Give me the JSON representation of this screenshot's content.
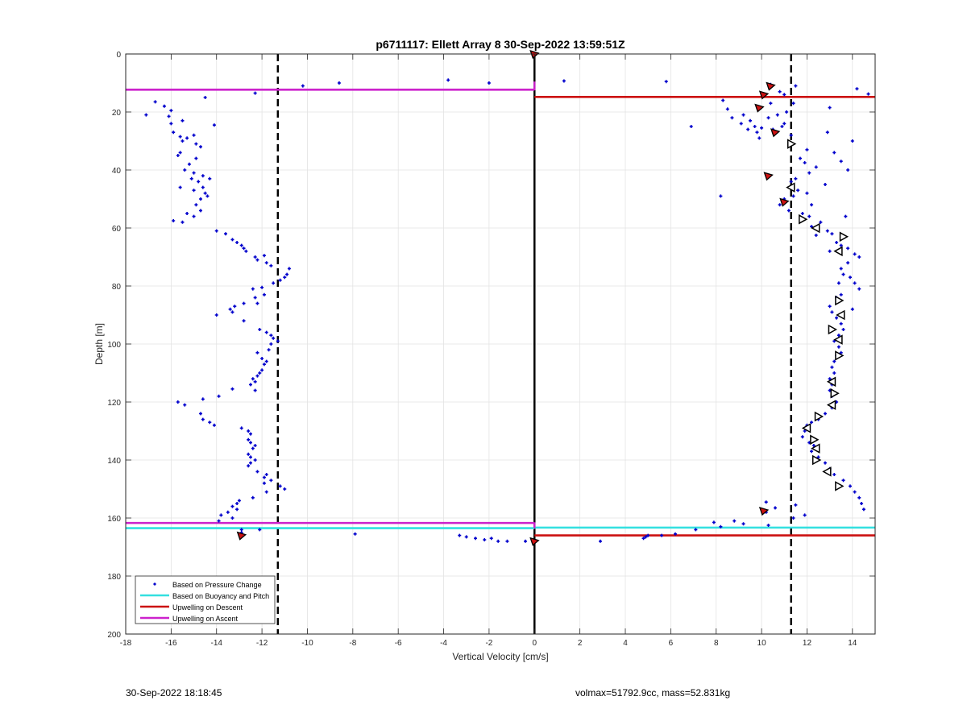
{
  "chart_data": {
    "type": "scatter",
    "title": "p6711117: Ellett Array 8 30-Sep-2022 13:59:51Z",
    "xlabel": "Vertical Velocity [cm/s]",
    "ylabel": "Depth [m]",
    "xlim": [
      -18,
      15
    ],
    "ylim": [
      0,
      200
    ],
    "y_reversed": true,
    "grid": true,
    "x_ticks": [
      -18,
      -16,
      -14,
      -12,
      -10,
      -8,
      -6,
      -4,
      -2,
      0,
      2,
      4,
      6,
      8,
      10,
      12,
      14
    ],
    "y_ticks": [
      0,
      20,
      40,
      60,
      80,
      100,
      120,
      140,
      160,
      180,
      200
    ],
    "legend": {
      "placement": "bottom-left",
      "entries": [
        {
          "label": "Based on Pressure Change",
          "color": "#0000cc",
          "style": "dot"
        },
        {
          "label": "Based on Buoyancy and Pitch",
          "color": "#33e0e0",
          "style": "line"
        },
        {
          "label": "Upwelling on Descent",
          "color": "#cc1111",
          "style": "line"
        },
        {
          "label": "Upwelling on Ascent",
          "color": "#cc22cc",
          "style": "line"
        }
      ]
    },
    "colors": {
      "pressure": "#0000cc",
      "buoyancy": "#33e0e0",
      "descent": "#cc1111",
      "ascent": "#cc22cc",
      "threshold": "#000000",
      "zero": "#000000"
    },
    "threshold_lines": [
      -11.3,
      11.3
    ],
    "zero_line": 0,
    "pressure_change_points": [
      [
        -17.1,
        21
      ],
      [
        -16.7,
        16.5
      ],
      [
        -16.3,
        18
      ],
      [
        -16.0,
        19.5
      ],
      [
        -16.1,
        21.5
      ],
      [
        -16.0,
        24
      ],
      [
        -15.9,
        27
      ],
      [
        -15.6,
        28.5
      ],
      [
        -15.5,
        23
      ],
      [
        -15.5,
        30
      ],
      [
        -15.3,
        29
      ],
      [
        -15.0,
        28
      ],
      [
        -14.9,
        31
      ],
      [
        -14.7,
        32
      ],
      [
        -15.6,
        34
      ],
      [
        -15.7,
        35
      ],
      [
        -15.2,
        38
      ],
      [
        -14.9,
        36
      ],
      [
        -15.4,
        40
      ],
      [
        -15.0,
        41
      ],
      [
        -15.1,
        43
      ],
      [
        -14.6,
        42
      ],
      [
        -14.3,
        43
      ],
      [
        -14.8,
        44
      ],
      [
        -15.6,
        46
      ],
      [
        -15.0,
        47
      ],
      [
        -14.6,
        46
      ],
      [
        -14.4,
        49
      ],
      [
        -14.5,
        48
      ],
      [
        -14.7,
        50
      ],
      [
        -14.9,
        52
      ],
      [
        -14.7,
        54
      ],
      [
        -15.3,
        55
      ],
      [
        -15.0,
        56
      ],
      [
        -15.5,
        58
      ],
      [
        -15.9,
        57.5
      ],
      [
        -14.5,
        15
      ],
      [
        -14.1,
        24.5
      ],
      [
        -14.0,
        61
      ],
      [
        -13.6,
        62
      ],
      [
        -13.3,
        64
      ],
      [
        -13.1,
        65
      ],
      [
        -12.9,
        66
      ],
      [
        -12.8,
        67
      ],
      [
        -12.7,
        68
      ],
      [
        -12.3,
        70
      ],
      [
        -12.2,
        71
      ],
      [
        -11.9,
        69.5
      ],
      [
        -11.8,
        72
      ],
      [
        -11.6,
        73
      ],
      [
        -10.8,
        74
      ],
      [
        -10.9,
        76
      ],
      [
        -11.2,
        78
      ],
      [
        -11.0,
        77
      ],
      [
        -11.5,
        79
      ],
      [
        -12.0,
        80.5
      ],
      [
        -12.4,
        81
      ],
      [
        -12.3,
        84
      ],
      [
        -11.9,
        83
      ],
      [
        -12.2,
        86
      ],
      [
        -12.8,
        86
      ],
      [
        -13.2,
        87
      ],
      [
        -13.4,
        88
      ],
      [
        -14.0,
        90
      ],
      [
        -13.3,
        89
      ],
      [
        -12.8,
        92
      ],
      [
        -12.1,
        95
      ],
      [
        -11.8,
        96
      ],
      [
        -11.6,
        97
      ],
      [
        -11.5,
        98
      ],
      [
        -11.3,
        99
      ],
      [
        -11.6,
        100
      ],
      [
        -11.7,
        102
      ],
      [
        -12.2,
        103
      ],
      [
        -12.0,
        105
      ],
      [
        -11.8,
        106
      ],
      [
        -11.9,
        107
      ],
      [
        -12.0,
        109
      ],
      [
        -12.1,
        110
      ],
      [
        -12.2,
        111
      ],
      [
        -12.4,
        112
      ],
      [
        -12.3,
        113
      ],
      [
        -12.5,
        114
      ],
      [
        -12.3,
        116
      ],
      [
        -13.3,
        115.5
      ],
      [
        -13.9,
        118
      ],
      [
        -14.6,
        119
      ],
      [
        -15.4,
        121
      ],
      [
        -15.7,
        120
      ],
      [
        -14.7,
        124
      ],
      [
        -14.6,
        126
      ],
      [
        -14.3,
        127
      ],
      [
        -14.1,
        128
      ],
      [
        -12.9,
        129
      ],
      [
        -12.6,
        130
      ],
      [
        -12.5,
        131
      ],
      [
        -12.6,
        133
      ],
      [
        -12.5,
        134
      ],
      [
        -12.3,
        135
      ],
      [
        -12.4,
        136
      ],
      [
        -12.6,
        138
      ],
      [
        -12.5,
        139
      ],
      [
        -12.3,
        140
      ],
      [
        -12.5,
        141
      ],
      [
        -12.6,
        142
      ],
      [
        -12.2,
        144
      ],
      [
        -11.8,
        145
      ],
      [
        -11.9,
        146
      ],
      [
        -11.6,
        147
      ],
      [
        -11.9,
        148
      ],
      [
        -11.2,
        149
      ],
      [
        -11.0,
        150
      ],
      [
        -11.8,
        151
      ],
      [
        -12.4,
        153
      ],
      [
        -13.0,
        154
      ],
      [
        -13.1,
        155
      ],
      [
        -13.3,
        156
      ],
      [
        -13.1,
        157
      ],
      [
        -13.5,
        158
      ],
      [
        -13.8,
        159
      ],
      [
        -13.3,
        160
      ],
      [
        -13.9,
        161
      ],
      [
        -12.9,
        164
      ],
      [
        -12.9,
        165
      ],
      [
        -12.1,
        164
      ],
      [
        -7.9,
        165.5
      ],
      [
        -12.3,
        13.5
      ],
      [
        -10.2,
        11
      ],
      [
        -8.6,
        10
      ],
      [
        -3.8,
        9
      ],
      [
        -2.0,
        10
      ],
      [
        1.3,
        9.3
      ],
      [
        5.8,
        9.5
      ],
      [
        -3.3,
        166
      ],
      [
        -3.0,
        166.5
      ],
      [
        -2.6,
        167
      ],
      [
        -2.2,
        167.5
      ],
      [
        -1.9,
        167
      ],
      [
        -1.6,
        168
      ],
      [
        -1.2,
        168
      ],
      [
        -0.4,
        168
      ],
      [
        2.9,
        168
      ],
      [
        4.8,
        167
      ],
      [
        4.9,
        166.5
      ],
      [
        5.0,
        166
      ],
      [
        5.6,
        166
      ],
      [
        6.2,
        165.5
      ],
      [
        7.1,
        164
      ],
      [
        8.2,
        163
      ],
      [
        7.9,
        161.5
      ],
      [
        8.8,
        161
      ],
      [
        9.2,
        162
      ],
      [
        10.3,
        162.5
      ],
      [
        10.2,
        154.5
      ],
      [
        10.6,
        156.5
      ],
      [
        11.5,
        155.5
      ],
      [
        11.9,
        159
      ],
      [
        11.4,
        160
      ],
      [
        10.2,
        158
      ],
      [
        8.2,
        49
      ],
      [
        6.9,
        25
      ],
      [
        8.3,
        16
      ],
      [
        8.5,
        19
      ],
      [
        8.7,
        22
      ],
      [
        9.2,
        21
      ],
      [
        9.1,
        24
      ],
      [
        9.5,
        23
      ],
      [
        9.7,
        25
      ],
      [
        9.8,
        27
      ],
      [
        9.4,
        26
      ],
      [
        9.9,
        29
      ],
      [
        10.0,
        25.5
      ],
      [
        10.4,
        17
      ],
      [
        10.3,
        22
      ],
      [
        10.7,
        21
      ],
      [
        10.5,
        26
      ],
      [
        10.9,
        25
      ],
      [
        11.0,
        24
      ],
      [
        11.3,
        28
      ],
      [
        11.1,
        20
      ],
      [
        11.0,
        14
      ],
      [
        11.5,
        11
      ],
      [
        10.4,
        10.5
      ],
      [
        10.8,
        13
      ],
      [
        14.2,
        12
      ],
      [
        14.7,
        13.8
      ],
      [
        13.0,
        18.5
      ],
      [
        12.9,
        27
      ],
      [
        11.4,
        17
      ],
      [
        12.0,
        33
      ],
      [
        11.7,
        36
      ],
      [
        11.9,
        37.5
      ],
      [
        12.4,
        39
      ],
      [
        12.1,
        41
      ],
      [
        11.5,
        43
      ],
      [
        11.3,
        44
      ],
      [
        11.6,
        47
      ],
      [
        12.0,
        48
      ],
      [
        11.4,
        49
      ],
      [
        11.0,
        50
      ],
      [
        10.8,
        52
      ],
      [
        11.2,
        54
      ],
      [
        11.8,
        55
      ],
      [
        12.1,
        56
      ],
      [
        12.6,
        58
      ],
      [
        12.2,
        59.5
      ],
      [
        12.9,
        61
      ],
      [
        13.1,
        62
      ],
      [
        12.4,
        62.5
      ],
      [
        13.3,
        65
      ],
      [
        13.5,
        66
      ],
      [
        13.8,
        67
      ],
      [
        14.1,
        69
      ],
      [
        14.3,
        70
      ],
      [
        13.8,
        72
      ],
      [
        13.5,
        74
      ],
      [
        13.6,
        76
      ],
      [
        13.9,
        77
      ],
      [
        14.1,
        79
      ],
      [
        14.3,
        81
      ],
      [
        13.5,
        83
      ],
      [
        13.3,
        84
      ],
      [
        13.0,
        87
      ],
      [
        13.1,
        89
      ],
      [
        13.3,
        91
      ],
      [
        13.5,
        93
      ],
      [
        13.6,
        95
      ],
      [
        13.4,
        97
      ],
      [
        13.2,
        99
      ],
      [
        13.4,
        101
      ],
      [
        13.5,
        103
      ],
      [
        13.3,
        104
      ],
      [
        13.2,
        106
      ],
      [
        13.1,
        108
      ],
      [
        13.2,
        110
      ],
      [
        13.0,
        112
      ],
      [
        13.1,
        114
      ],
      [
        13.0,
        116
      ],
      [
        13.1,
        118
      ],
      [
        13.3,
        120
      ],
      [
        13.1,
        122
      ],
      [
        12.8,
        124
      ],
      [
        12.5,
        126
      ],
      [
        12.2,
        127
      ],
      [
        12.0,
        128
      ],
      [
        11.9,
        130
      ],
      [
        11.8,
        132
      ],
      [
        12.1,
        134
      ],
      [
        12.3,
        135
      ],
      [
        12.2,
        137
      ],
      [
        12.5,
        139
      ],
      [
        12.8,
        141
      ],
      [
        13.0,
        143
      ],
      [
        13.2,
        145
      ],
      [
        13.6,
        147
      ],
      [
        13.9,
        149
      ],
      [
        14.1,
        151
      ],
      [
        14.3,
        153
      ],
      [
        14.4,
        155
      ],
      [
        14.5,
        157
      ],
      [
        14.0,
        30
      ],
      [
        13.2,
        34
      ],
      [
        13.5,
        37
      ],
      [
        13.8,
        40
      ],
      [
        12.8,
        45
      ],
      [
        12.2,
        52
      ],
      [
        13.7,
        56
      ],
      [
        13.0,
        68
      ],
      [
        13.4,
        79
      ],
      [
        14.0,
        88
      ]
    ],
    "descent_markers": [
      [
        10.4,
        11
      ],
      [
        10.1,
        14
      ],
      [
        9.9,
        18.5
      ],
      [
        10.6,
        27
      ],
      [
        10.3,
        42
      ],
      [
        11.0,
        51
      ],
      [
        10.1,
        157.5
      ],
      [
        -12.9,
        166
      ],
      [
        0,
        0
      ],
      [
        0,
        168
      ]
    ],
    "ascent_markers": [
      [
        11.3,
        31
      ],
      [
        11.3,
        46
      ],
      [
        11.8,
        57
      ],
      [
        12.4,
        60
      ],
      [
        13.6,
        63
      ],
      [
        13.4,
        68
      ],
      [
        13.4,
        85
      ],
      [
        13.5,
        90
      ],
      [
        13.1,
        95
      ],
      [
        13.4,
        98.5
      ],
      [
        13.4,
        104
      ],
      [
        13.1,
        113
      ],
      [
        13.2,
        117
      ],
      [
        13.1,
        121
      ],
      [
        12.5,
        125
      ],
      [
        12.0,
        129
      ],
      [
        12.3,
        133
      ],
      [
        12.4,
        136
      ],
      [
        12.4,
        140
      ],
      [
        12.9,
        144
      ],
      [
        13.4,
        149
      ]
    ],
    "lines": {
      "ascent_top": {
        "y": 12.3,
        "x_from": -18,
        "x_to": 0
      },
      "descent_top": {
        "y": 14.8,
        "x_from": 0,
        "x_to": 15
      },
      "ascent_bottom": {
        "y": 161.7,
        "x_from": -18,
        "x_to": 0
      },
      "buoyancy_bottom_left": {
        "y": 163.5,
        "x_from": -18,
        "x_to": 0
      },
      "buoyancy_bottom_right": {
        "y": 163.3,
        "x_from": 0,
        "x_to": 15
      },
      "descent_bottom": {
        "y": 166.0,
        "x_from": 0,
        "x_to": 15
      }
    }
  },
  "footer": {
    "timestamp": "30-Sep-2022 18:18:45",
    "info": "volmax=51792.9cc, mass=52.831kg"
  }
}
